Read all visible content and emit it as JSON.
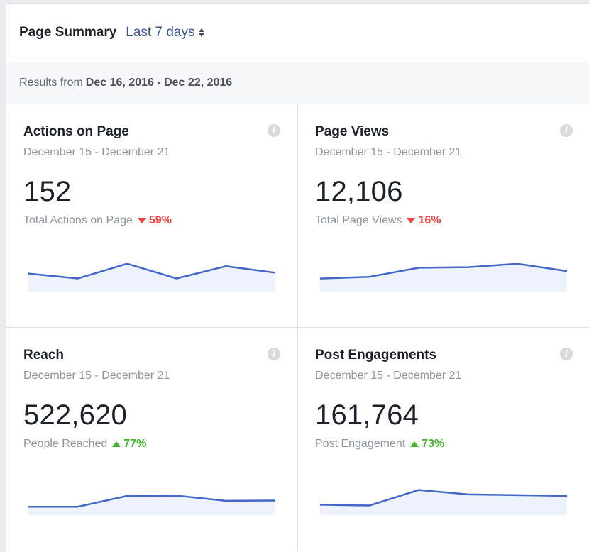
{
  "header": {
    "title": "Page Summary",
    "range_label": "Last 7 days"
  },
  "results": {
    "prefix": "Results from",
    "range": "Dec 16, 2016 - Dec 22, 2016"
  },
  "colors": {
    "line": "#4267c8",
    "fill": "#eef2fc",
    "down": "#fa3e3e",
    "up": "#42b72a"
  },
  "cards": [
    {
      "title": "Actions on Page",
      "date_range": "December 15 - December 21",
      "value": "152",
      "metric_label": "Total Actions on Page",
      "change": "59%",
      "direction": "down",
      "info_icon": "i",
      "chart_data": {
        "type": "area",
        "values": [
          152,
          146,
          164,
          146,
          161,
          153
        ],
        "ylim": [
          130,
          175
        ]
      }
    },
    {
      "title": "Page Views",
      "date_range": "December 15 - December 21",
      "value": "12,106",
      "metric_label": "Total Page Views",
      "change": "16%",
      "direction": "down",
      "info_icon": "i",
      "chart_data": {
        "type": "area",
        "values": [
          1530,
          1560,
          1720,
          1730,
          1790,
          1660
        ],
        "ylim": [
          1300,
          1950
        ]
      }
    },
    {
      "title": "Reach",
      "date_range": "December 15 - December 21",
      "value": "522,620",
      "metric_label": "People Reached",
      "change": "77%",
      "direction": "up",
      "info_icon": "i",
      "chart_data": {
        "type": "area",
        "values": [
          54000,
          54000,
          98000,
          99000,
          78000,
          79000
        ],
        "ylim": [
          20000,
          170000
        ]
      }
    },
    {
      "title": "Post Engagements",
      "date_range": "December 15 - December 21",
      "value": "161,764",
      "metric_label": "Post Engagement",
      "change": "73%",
      "direction": "up",
      "info_icon": "i",
      "chart_data": {
        "type": "area",
        "values": [
          14000,
          13000,
          34000,
          28000,
          27000,
          26000
        ],
        "ylim": [
          0,
          50000
        ]
      }
    }
  ]
}
